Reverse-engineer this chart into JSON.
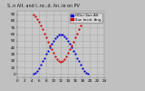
{
  "title": "S..n Alt. and I..nc..d. An..le on PV",
  "legend_label_1": "HOur Sun Alt.",
  "legend_label_2": "Sun Incid. Ang.",
  "color_blue": "#0000cc",
  "color_red": "#cc0000",
  "background_color": "#c0c0c0",
  "plot_bg": "#c8c8c8",
  "grid_color": "#aaaaaa",
  "xlim": [
    0,
    24
  ],
  "ylim": [
    -5,
    95
  ],
  "x_ticks": [
    0,
    2,
    4,
    6,
    8,
    10,
    12,
    14,
    16,
    18,
    20,
    22,
    24
  ],
  "y_ticks": [
    0,
    10,
    20,
    30,
    40,
    50,
    60,
    70,
    80,
    90
  ],
  "hours": [
    4.5,
    5.0,
    5.5,
    6.0,
    6.5,
    7.0,
    7.5,
    8.0,
    8.5,
    9.0,
    9.5,
    10.0,
    10.5,
    11.0,
    11.5,
    12.0,
    12.5,
    13.0,
    13.5,
    14.0,
    14.5,
    15.0,
    15.5,
    16.0,
    16.5,
    17.0,
    17.5,
    18.0,
    18.5,
    19.0,
    19.5
  ],
  "altitude": [
    0,
    2,
    5,
    9,
    14,
    19,
    24,
    30,
    35,
    40,
    45,
    50,
    54,
    57,
    59,
    60,
    59,
    57,
    54,
    50,
    45,
    40,
    35,
    30,
    24,
    19,
    14,
    9,
    5,
    2,
    0
  ],
  "incidence": [
    90,
    87,
    83,
    78,
    73,
    67,
    61,
    55,
    49,
    43,
    37,
    32,
    27,
    23,
    20,
    18,
    20,
    23,
    27,
    32,
    37,
    43,
    49,
    55,
    61,
    67,
    73,
    78,
    83,
    87,
    90
  ],
  "marker_size": 1.2,
  "tick_fontsize": 3,
  "title_fontsize": 3.5,
  "legend_fontsize": 2.8
}
